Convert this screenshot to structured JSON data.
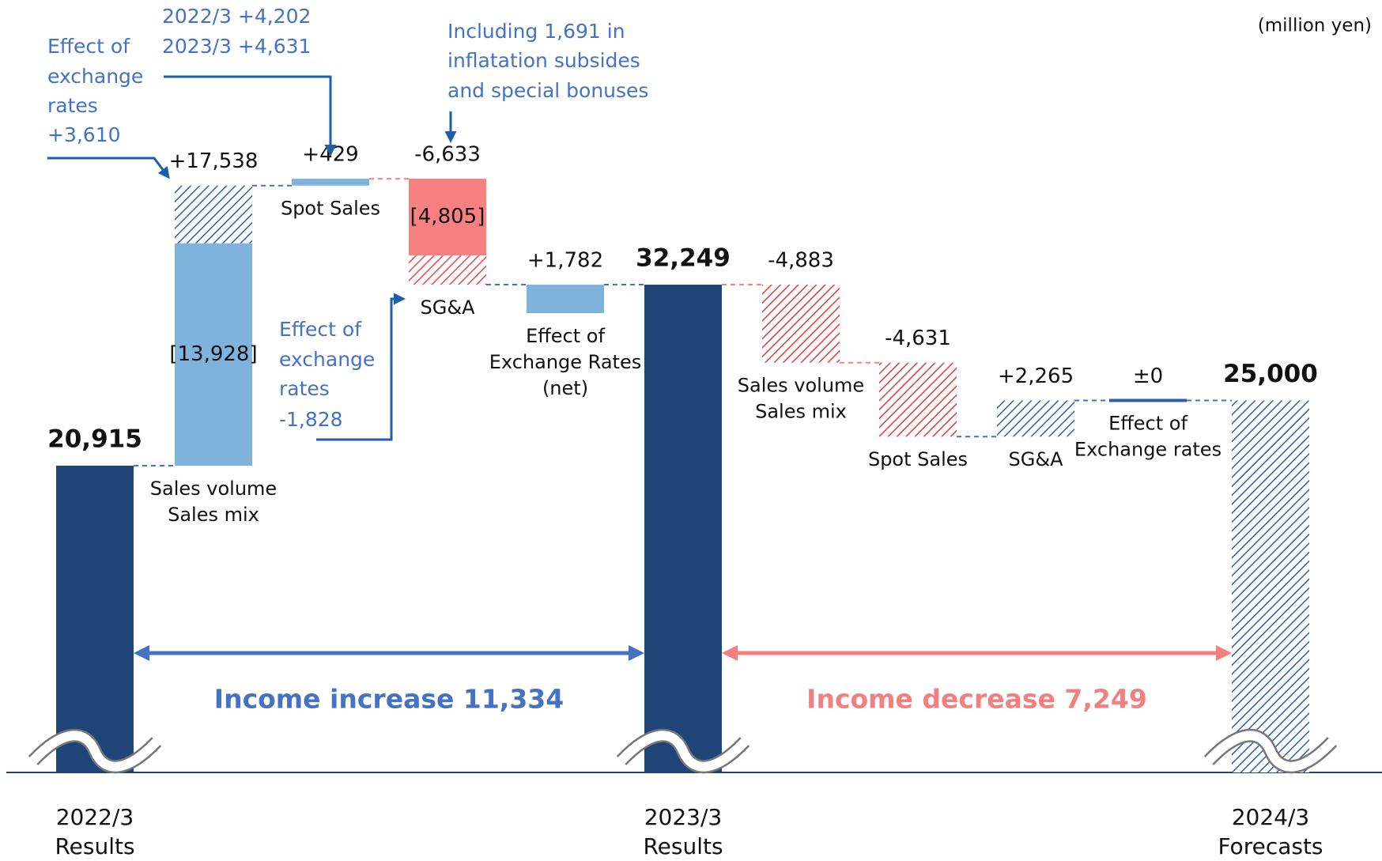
{
  "chart_data": {
    "type": "waterfall",
    "unit": "(million yen)",
    "steps": [
      {
        "category": [
          "2022/3",
          "Results"
        ],
        "kind": "total",
        "value": 20915,
        "value_label": "20,915",
        "color": "#1f4477",
        "hatched": false
      },
      {
        "category": [
          "Sales volume",
          "Sales mix"
        ],
        "kind": "delta",
        "value": 17538,
        "value_label": "+17,538",
        "color": "#7fb3dc",
        "hatched": false,
        "parts": [
          {
            "value": 13928,
            "value_label": "[13,928]",
            "color": "#7fb3dc",
            "hatched": false
          },
          {
            "name": [
              "Effect of",
              "exchange",
              "rates"
            ],
            "value": 3610,
            "value_label": "+3,610",
            "color": "#2e5fa8",
            "hatched": true
          }
        ]
      },
      {
        "category": [
          "Spot Sales"
        ],
        "kind": "delta",
        "value": 429,
        "value_label": "+429",
        "color": "#7fb3dc",
        "hatched": false,
        "note": [
          "2022/3  +4,202",
          "2023/3  +4,631"
        ]
      },
      {
        "category": [
          "SG&A"
        ],
        "kind": "delta",
        "value": -6633,
        "value_label": "-6,633",
        "color": "#f88080",
        "hatched": false,
        "note": [
          "Including 1,691 in",
          "inflatation subsides",
          "and special bonuses"
        ],
        "parts": [
          {
            "value": -4805,
            "value_label": "[4,805]",
            "color": "#f88080",
            "hatched": false
          },
          {
            "name": [
              "Effect of",
              "exchange",
              "rates"
            ],
            "value": -1828,
            "value_label": "-1,828",
            "color": "#e8474b",
            "hatched": true
          }
        ]
      },
      {
        "category": [
          "Effect of",
          "Exchange Rates",
          "(net)"
        ],
        "kind": "info",
        "value": 1782,
        "value_label": "+1,782",
        "color": "#7fb3dc",
        "hatched": false
      },
      {
        "category": [
          "2023/3",
          "Results"
        ],
        "kind": "total",
        "value": 32249,
        "value_label": "32,249",
        "color": "#1f4477",
        "hatched": false
      },
      {
        "category": [
          "Sales volume",
          "Sales mix"
        ],
        "kind": "delta",
        "value": -4883,
        "value_label": "-4,883",
        "color": "#e0393e",
        "hatched": true
      },
      {
        "category": [
          "Spot Sales"
        ],
        "kind": "delta",
        "value": -4631,
        "value_label": "-4,631",
        "color": "#e0393e",
        "hatched": true
      },
      {
        "category": [
          "SG&A"
        ],
        "kind": "delta",
        "value": 2265,
        "value_label": "+2,265",
        "color": "#2e5fa8",
        "hatched": true
      },
      {
        "category": [
          "Effect of",
          "Exchange rates"
        ],
        "kind": "delta",
        "value": 0,
        "value_label": "±0",
        "color": "#2e5fa8",
        "hatched": false
      },
      {
        "category": [
          "2024/3",
          "Forecasts"
        ],
        "kind": "total",
        "value": 25000,
        "value_label": "25,000",
        "color": "#2e5fa8",
        "hatched": true
      }
    ],
    "spans": [
      {
        "label": "Income increase 11,334",
        "color": "#4472c4"
      },
      {
        "label": "Income decrease 7,249",
        "color": "#f47f7f"
      }
    ]
  }
}
